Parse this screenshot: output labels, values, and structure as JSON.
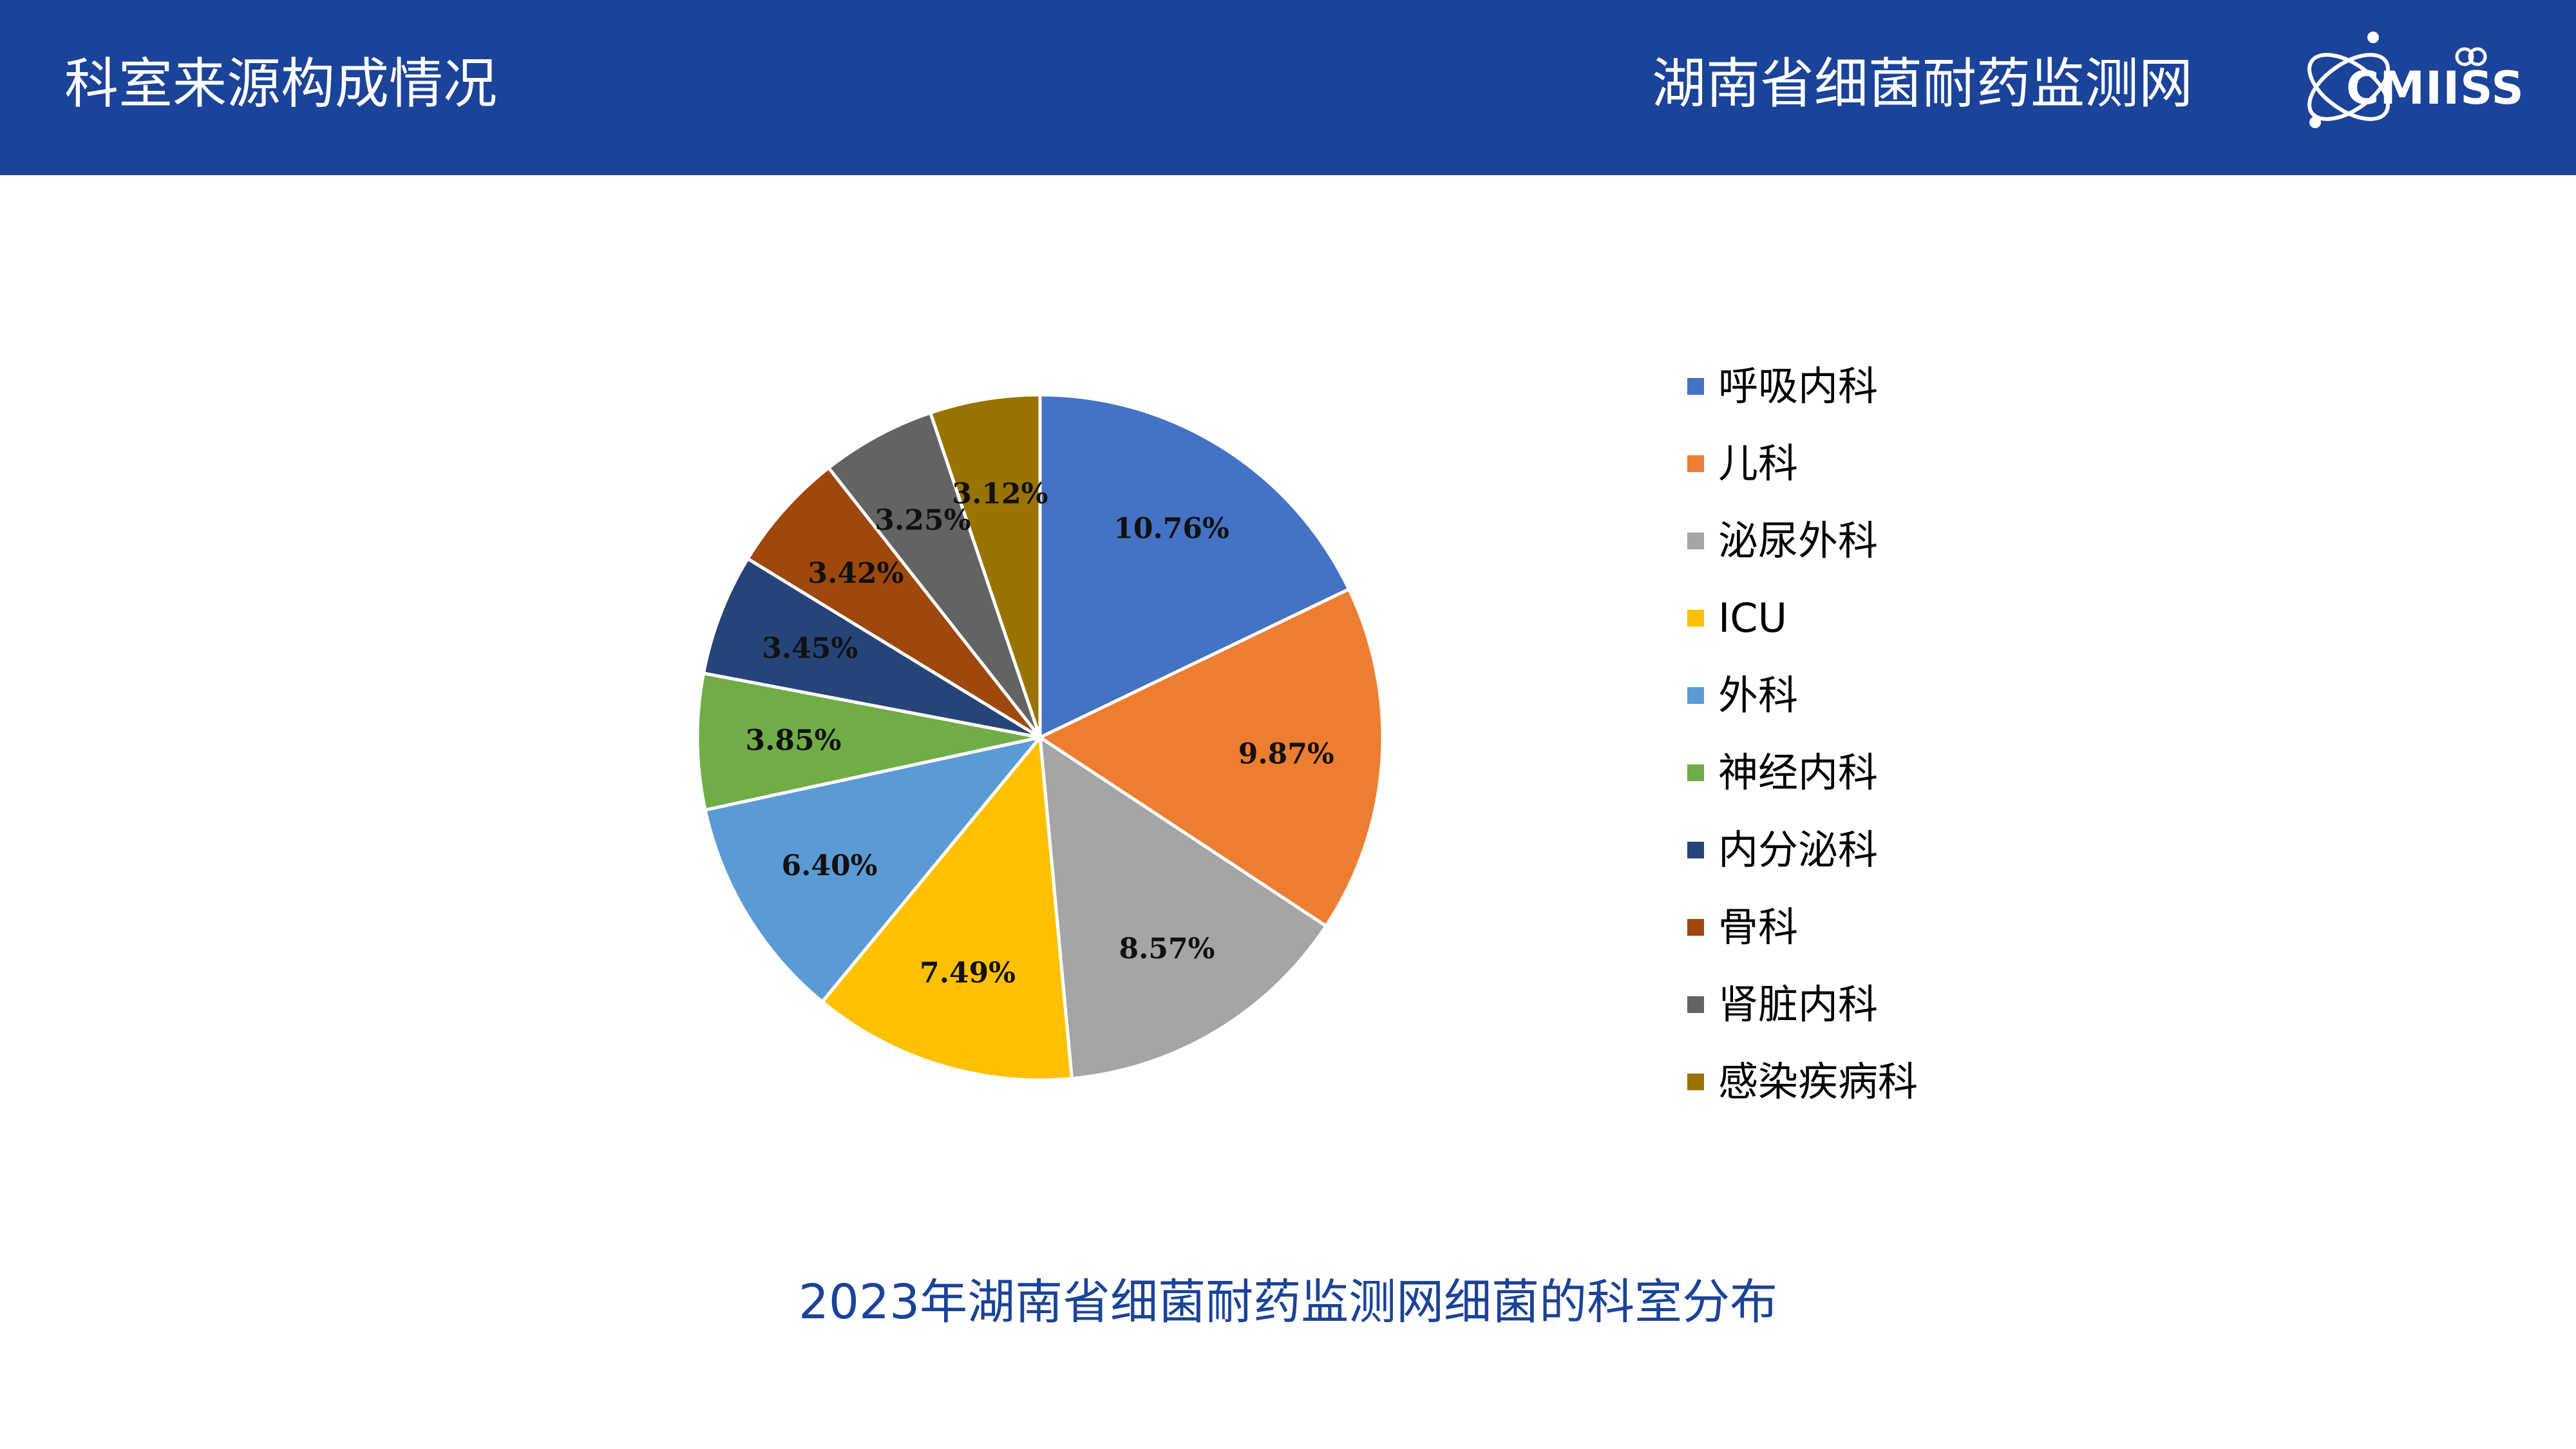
{
  "header": {
    "title": "科室来源构成情况",
    "network": "湖南省细菌耐药监测网",
    "logo_text": "CMIISS",
    "background": "#1a4399"
  },
  "chart_data": {
    "type": "pie",
    "title": "",
    "categories": [
      "呼吸内科",
      "儿科",
      "泌尿外科",
      "ICU",
      "外科",
      "神经内科",
      "内分泌科",
      "骨科",
      "肾脏内科",
      "感染疾病科"
    ],
    "values": [
      10.76,
      9.87,
      8.57,
      7.49,
      6.4,
      3.85,
      3.45,
      3.42,
      3.25,
      3.12
    ],
    "value_labels": [
      "10.76%",
      "9.87%",
      "8.57%",
      "7.49%",
      "6.40%",
      "3.85%",
      "3.45%",
      "3.42%",
      "3.25%",
      "3.12%"
    ],
    "colors": [
      "#4472c4",
      "#ed7d31",
      "#a5a5a5",
      "#ffc000",
      "#5b9bd5",
      "#70ad47",
      "#264478",
      "#9e480e",
      "#636363",
      "#997300"
    ],
    "legend_position": "right",
    "start_angle": "12 o'clock, clockwise"
  },
  "caption": "2023年湖南省细菌耐药监测网细菌的科室分布"
}
